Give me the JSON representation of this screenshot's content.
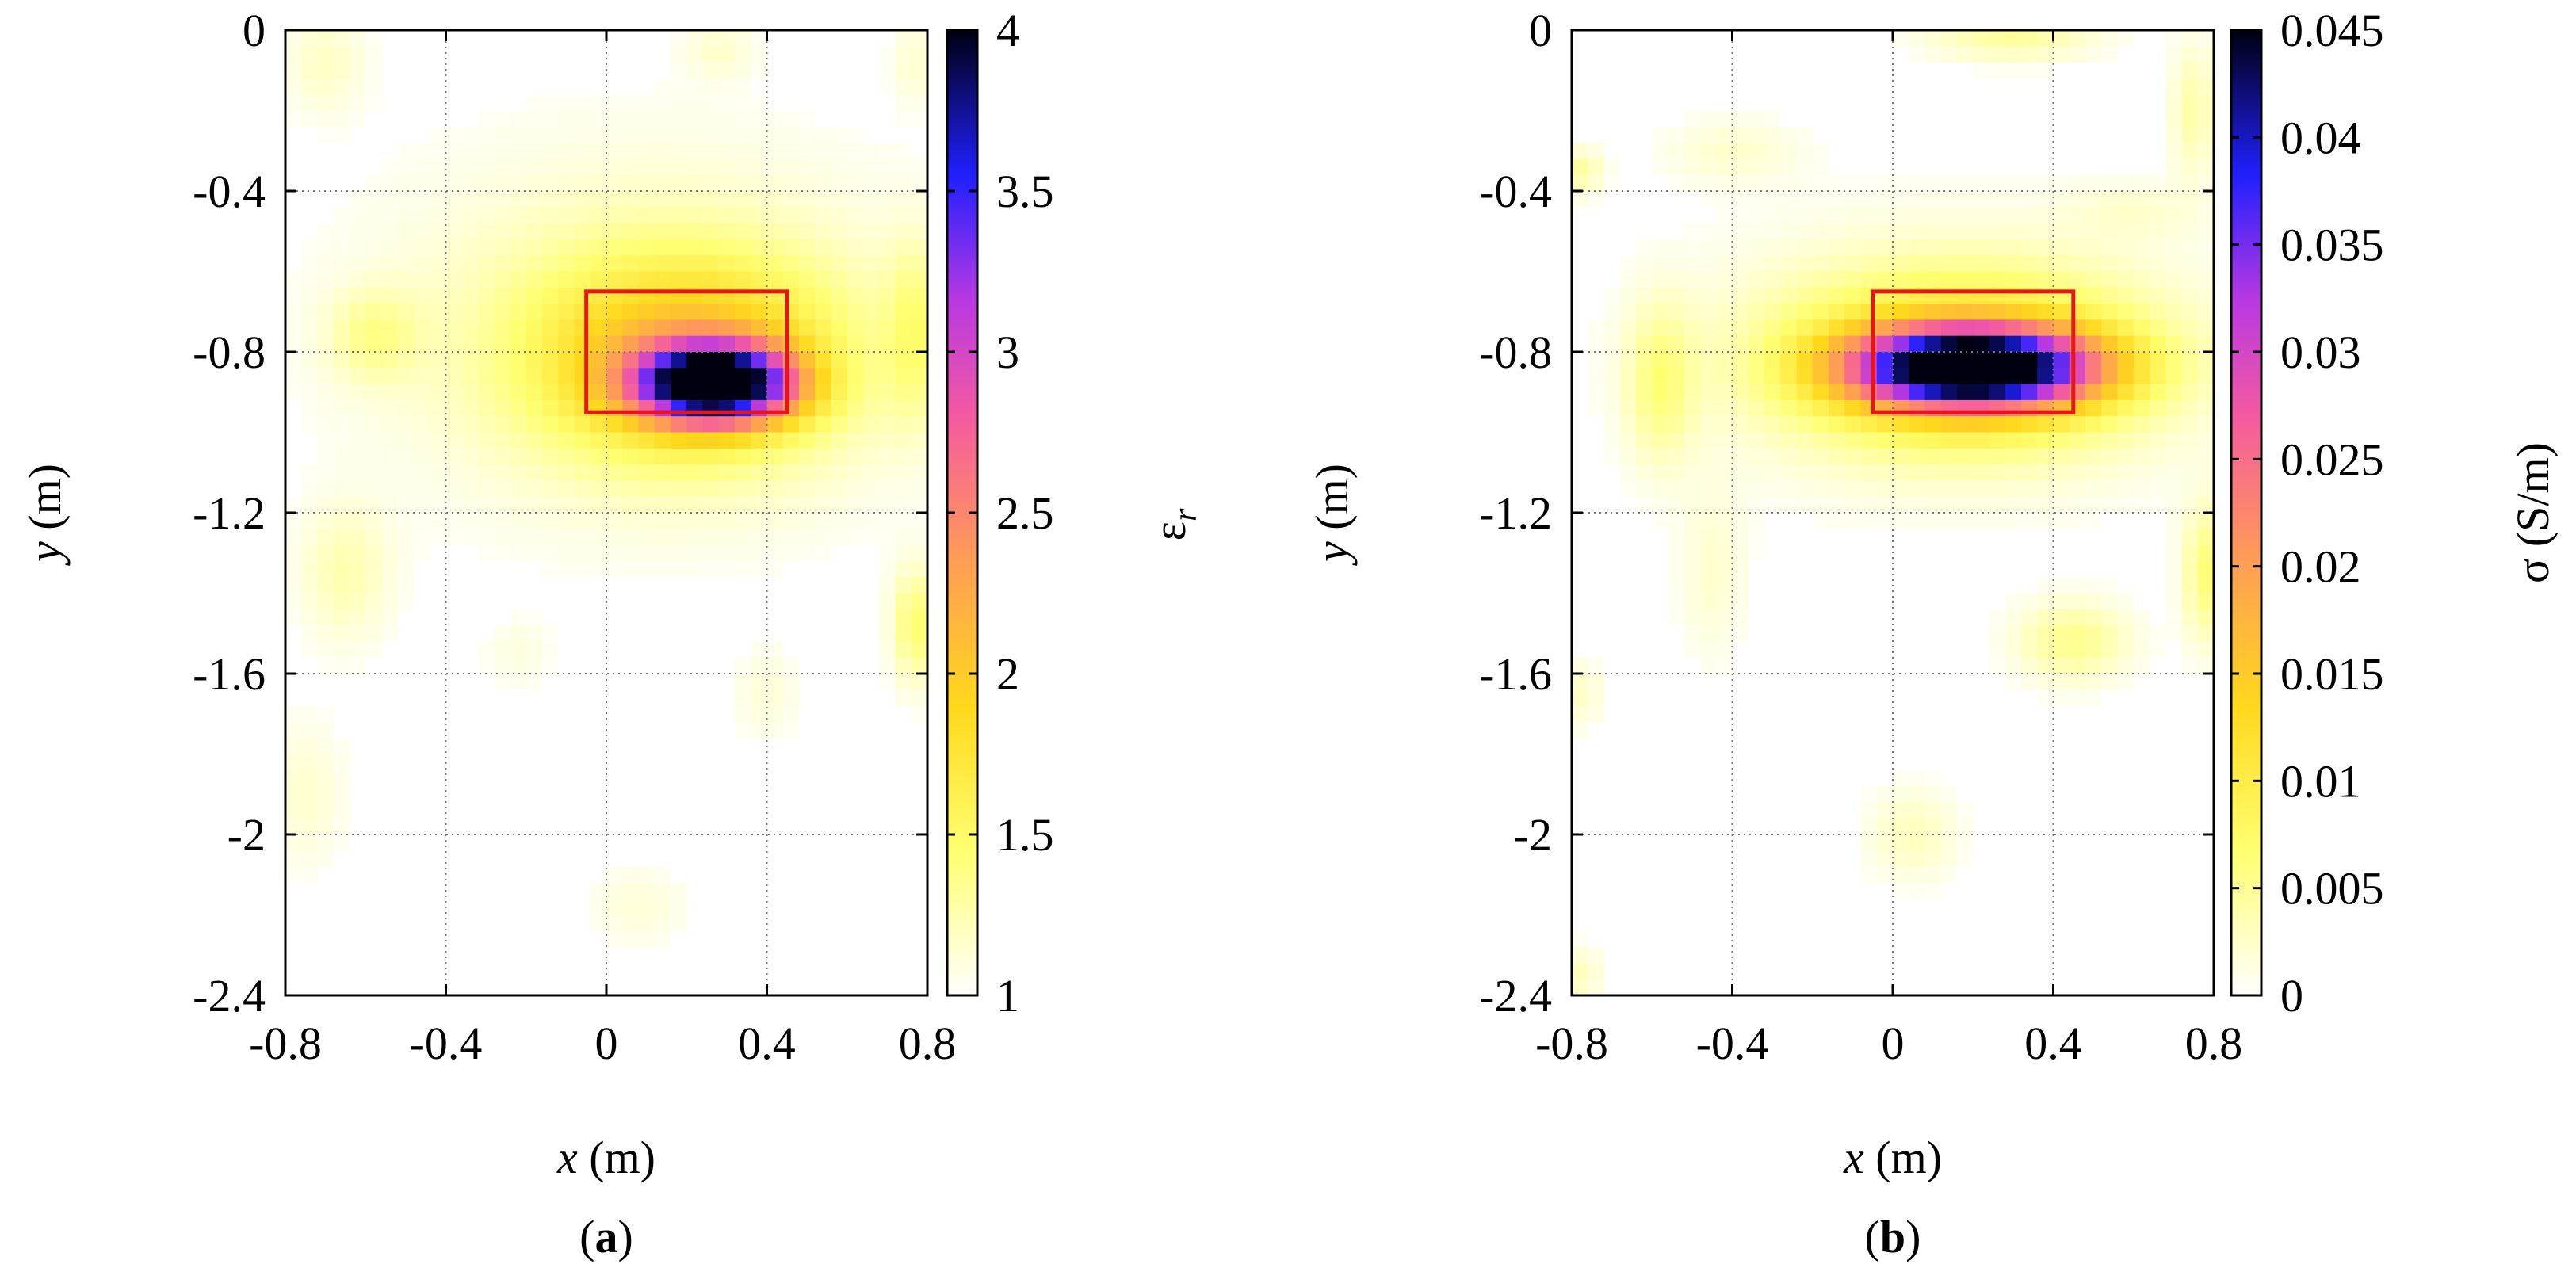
{
  "chart_data": [
    {
      "type": "heatmap",
      "panel_label_letter": "a",
      "panel_label_open": "(",
      "panel_label_close": ")",
      "x_label_var": "x",
      "x_label_unit": " (m)",
      "y_label_var": "y",
      "y_label_unit": " (m)",
      "colorbar_label_main": "ε",
      "colorbar_label_sub": "r",
      "xlim": [
        -0.8,
        0.8
      ],
      "ylim": [
        -2.4,
        0
      ],
      "x_ticks": [
        "-0.8",
        "-0.4",
        "0",
        "0.4",
        "0.8"
      ],
      "y_ticks": [
        "0",
        "-0.4",
        "-0.8",
        "-1.2",
        "-1.6",
        "-2",
        "-2.4"
      ],
      "colorbar_range": [
        1,
        4
      ],
      "colorbar_ticks": [
        "4",
        "3.5",
        "3",
        "2.5",
        "2",
        "1.5",
        "1"
      ],
      "grid": true,
      "target_box": {
        "x0": -0.05,
        "x1": 0.45,
        "y0": -0.95,
        "y1": -0.65
      },
      "blobs": [
        {
          "x": 0.27,
          "y": -0.88,
          "sx": 0.13,
          "sy": 0.065,
          "amp": 1.0
        },
        {
          "x": 0.2,
          "y": -0.82,
          "sx": 0.26,
          "sy": 0.17,
          "amp": 0.32
        },
        {
          "x": 0.1,
          "y": -0.75,
          "sx": 0.45,
          "sy": 0.3,
          "amp": 0.09
        },
        {
          "x": -0.58,
          "y": -0.76,
          "sx": 0.08,
          "sy": 0.08,
          "amp": 0.1
        },
        {
          "x": -0.7,
          "y": -0.08,
          "sx": 0.07,
          "sy": 0.09,
          "amp": 0.06
        },
        {
          "x": 0.28,
          "y": -0.05,
          "sx": 0.06,
          "sy": 0.05,
          "amp": 0.05
        },
        {
          "x": 0.77,
          "y": -0.08,
          "sx": 0.04,
          "sy": 0.07,
          "amp": 0.05
        },
        {
          "x": 0.77,
          "y": -0.75,
          "sx": 0.05,
          "sy": 0.16,
          "amp": 0.11
        },
        {
          "x": -0.65,
          "y": -1.35,
          "sx": 0.08,
          "sy": 0.12,
          "amp": 0.08
        },
        {
          "x": 0.77,
          "y": -1.48,
          "sx": 0.04,
          "sy": 0.1,
          "amp": 0.15
        },
        {
          "x": -0.75,
          "y": -1.9,
          "sx": 0.07,
          "sy": 0.13,
          "amp": 0.05
        },
        {
          "x": 0.08,
          "y": -2.18,
          "sx": 0.09,
          "sy": 0.07,
          "amp": 0.04
        },
        {
          "x": 0.4,
          "y": -1.65,
          "sx": 0.06,
          "sy": 0.08,
          "amp": 0.04
        },
        {
          "x": -0.22,
          "y": -1.55,
          "sx": 0.06,
          "sy": 0.06,
          "amp": 0.03
        }
      ]
    },
    {
      "type": "heatmap",
      "panel_label_letter": "b",
      "panel_label_open": "(",
      "panel_label_close": ")",
      "x_label_var": "x",
      "x_label_unit": " (m)",
      "y_label_var": "y",
      "y_label_unit": " (m)",
      "colorbar_label_main": "σ (S/m)",
      "colorbar_label_sub": "",
      "xlim": [
        -0.8,
        0.8
      ],
      "ylim": [
        -2.4,
        0
      ],
      "x_ticks": [
        "-0.8",
        "-0.4",
        "0",
        "0.4",
        "0.8"
      ],
      "y_ticks": [
        "0",
        "-0.4",
        "-0.8",
        "-1.2",
        "-1.6",
        "-2",
        "-2.4"
      ],
      "colorbar_range": [
        0,
        0.045
      ],
      "colorbar_ticks": [
        "0.045",
        "0.04",
        "0.035",
        "0.03",
        "0.025",
        "0.02",
        "0.015",
        "0.01",
        "0.005",
        "0"
      ],
      "grid": true,
      "target_box": {
        "x0": -0.05,
        "x1": 0.45,
        "y0": -0.95,
        "y1": -0.65
      },
      "blobs": [
        {
          "x": 0.2,
          "y": -0.84,
          "sx": 0.2,
          "sy": 0.065,
          "amp": 0.98
        },
        {
          "x": 0.18,
          "y": -0.83,
          "sx": 0.3,
          "sy": 0.14,
          "amp": 0.3
        },
        {
          "x": 0.15,
          "y": -0.8,
          "sx": 0.42,
          "sy": 0.22,
          "amp": 0.08
        },
        {
          "x": -0.58,
          "y": -0.88,
          "sx": 0.06,
          "sy": 0.14,
          "amp": 0.12
        },
        {
          "x": 0.45,
          "y": -1.52,
          "sx": 0.1,
          "sy": 0.07,
          "amp": 0.12
        },
        {
          "x": 0.78,
          "y": -1.35,
          "sx": 0.04,
          "sy": 0.12,
          "amp": 0.14
        },
        {
          "x": 0.75,
          "y": -0.2,
          "sx": 0.04,
          "sy": 0.12,
          "amp": 0.09
        },
        {
          "x": 0.3,
          "y": -0.02,
          "sx": 0.15,
          "sy": 0.04,
          "amp": 0.1
        },
        {
          "x": -0.78,
          "y": -0.35,
          "sx": 0.04,
          "sy": 0.04,
          "amp": 0.1
        },
        {
          "x": -0.4,
          "y": -0.3,
          "sx": 0.12,
          "sy": 0.06,
          "amp": 0.05
        },
        {
          "x": 0.05,
          "y": -2.0,
          "sx": 0.08,
          "sy": 0.08,
          "amp": 0.07
        },
        {
          "x": -0.45,
          "y": -1.35,
          "sx": 0.06,
          "sy": 0.15,
          "amp": 0.05
        },
        {
          "x": -0.78,
          "y": -1.65,
          "sx": 0.04,
          "sy": 0.06,
          "amp": 0.06
        },
        {
          "x": -0.78,
          "y": -2.35,
          "sx": 0.04,
          "sy": 0.05,
          "amp": 0.07
        },
        {
          "x": 0.6,
          "y": -0.45,
          "sx": 0.12,
          "sy": 0.05,
          "amp": 0.04
        }
      ]
    }
  ]
}
